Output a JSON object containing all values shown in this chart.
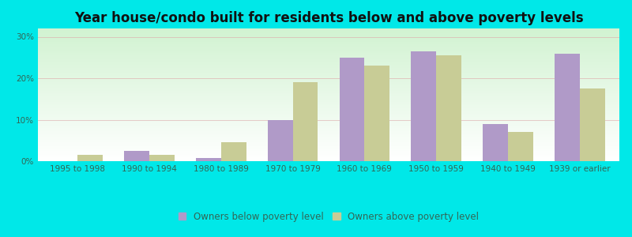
{
  "title": "Year house/condo built for residents below and above poverty levels",
  "categories": [
    "1995 to 1998",
    "1990 to 1994",
    "1980 to 1989",
    "1970 to 1979",
    "1960 to 1969",
    "1950 to 1959",
    "1940 to 1949",
    "1939 or earlier"
  ],
  "below_poverty": [
    0.0,
    2.5,
    0.7,
    10.0,
    25.0,
    26.5,
    9.0,
    26.0
  ],
  "above_poverty": [
    1.5,
    1.5,
    4.5,
    19.0,
    23.0,
    25.5,
    7.0,
    17.5
  ],
  "below_color": "#b09ac8",
  "above_color": "#c8cc96",
  "background_color": "#00e8e8",
  "ylim": [
    0,
    32
  ],
  "yticks": [
    0,
    10,
    20,
    30
  ],
  "bar_width": 0.35,
  "legend_below_label": "Owners below poverty level",
  "legend_above_label": "Owners above poverty level",
  "title_fontsize": 12,
  "tick_fontsize": 7.5,
  "legend_fontsize": 8.5
}
